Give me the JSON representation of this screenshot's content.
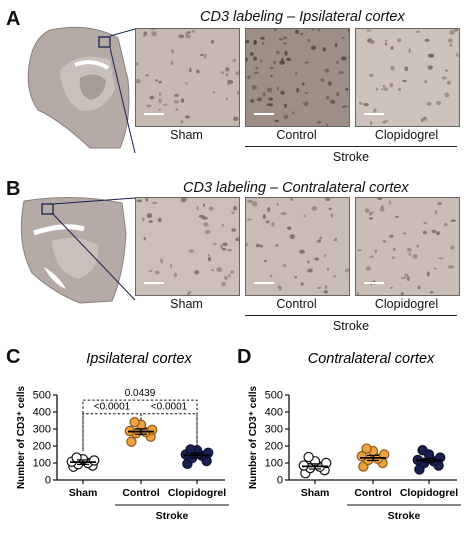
{
  "panelA": {
    "letter": "A",
    "title": "CD3 labeling – Ipsilateral cortex",
    "labels": [
      "Sham",
      "Control",
      "Clopidogrel"
    ],
    "group": "Stroke"
  },
  "panelB": {
    "letter": "B",
    "title": "CD3 labeling – Contralateral cortex",
    "labels": [
      "Sham",
      "Control",
      "Clopidogrel"
    ],
    "group": "Stroke"
  },
  "panelC": {
    "letter": "C"
  },
  "panelD": {
    "letter": "D"
  },
  "colors": {
    "sham": "#ffffff",
    "control": "#f0a040",
    "clopidogrel": "#1a1f52",
    "tissue": "#b5aaa6"
  },
  "chart_data": [
    {
      "type": "scatter",
      "title": "Ipsilateral cortex",
      "ylabel": "Number of CD3⁺ cells",
      "ylim": [
        0,
        500
      ],
      "yticks": [
        0,
        100,
        200,
        300,
        400,
        500
      ],
      "categories": [
        "Sham",
        "Control",
        "Clopidogrel"
      ],
      "group_label": "Stroke",
      "series": [
        {
          "category": "Sham",
          "mean": 105,
          "sem": 13,
          "values": [
            78,
            85,
            93,
            100,
            108,
            115,
            122,
            132
          ]
        },
        {
          "category": "Control",
          "mean": 285,
          "sem": 16,
          "values": [
            225,
            255,
            275,
            282,
            288,
            295,
            325,
            340
          ]
        },
        {
          "category": "Clopidogrel",
          "mean": 145,
          "sem": 14,
          "values": [
            95,
            112,
            130,
            143,
            150,
            160,
            175,
            180
          ]
        }
      ],
      "comparisons": [
        {
          "from": "Sham",
          "to": "Clopidogrel",
          "p": "0.0439"
        },
        {
          "from": "Sham",
          "to": "Control",
          "p": "<0.0001"
        },
        {
          "from": "Control",
          "to": "Clopidogrel",
          "p": "<0.0001"
        }
      ]
    },
    {
      "type": "scatter",
      "title": "Contralateral cortex",
      "ylabel": "Number of CD3⁺ cells",
      "ylim": [
        0,
        500
      ],
      "yticks": [
        0,
        100,
        200,
        300,
        400,
        500
      ],
      "categories": [
        "Sham",
        "Control",
        "Clopidogrel"
      ],
      "group_label": "Stroke",
      "series": [
        {
          "category": "Sham",
          "mean": 80,
          "sem": 15,
          "values": [
            40,
            58,
            70,
            78,
            85,
            100,
            110,
            135
          ]
        },
        {
          "category": "Control",
          "mean": 130,
          "sem": 15,
          "values": [
            80,
            100,
            118,
            125,
            140,
            150,
            170,
            185
          ]
        },
        {
          "category": "Clopidogrel",
          "mean": 115,
          "sem": 12,
          "values": [
            62,
            85,
            100,
            110,
            118,
            132,
            150,
            175
          ]
        }
      ]
    }
  ]
}
